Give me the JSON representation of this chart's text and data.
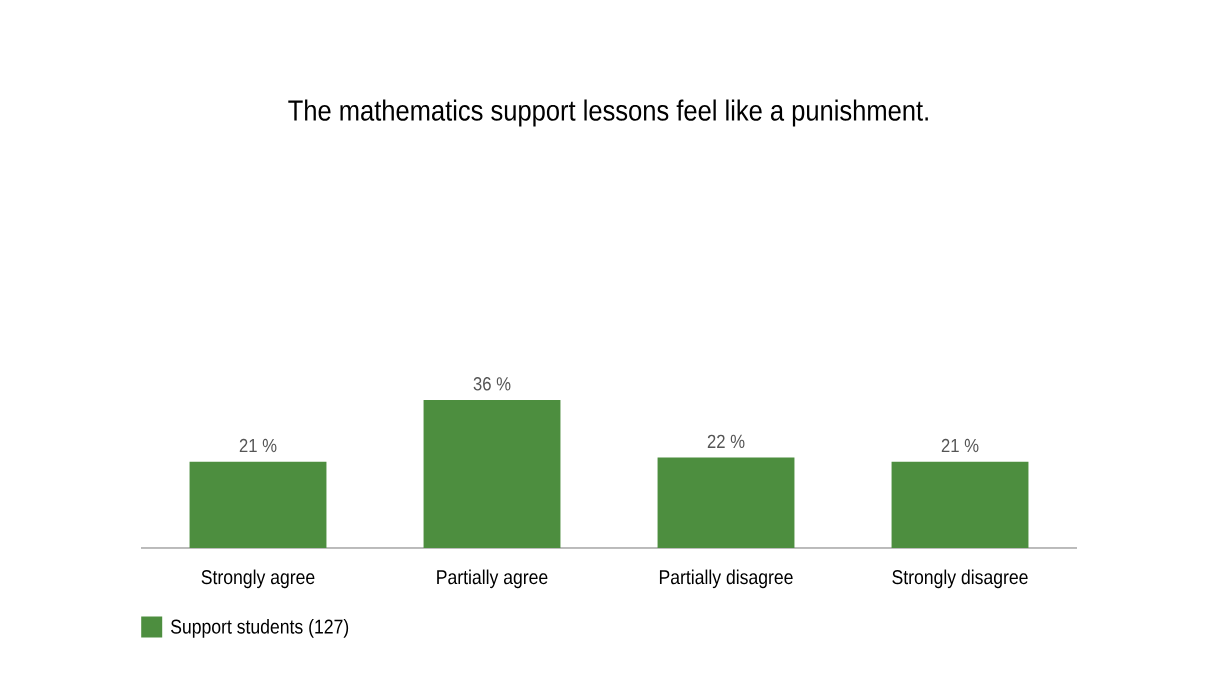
{
  "chart_data": {
    "type": "bar",
    "title": "The mathematics support lessons feel like a punishment.",
    "categories": [
      "Strongly agree",
      "Partially agree",
      "Partially disagree",
      "Strongly disagree"
    ],
    "series": [
      {
        "name": "Support students (127)",
        "color": "#4d8e3f",
        "values": [
          21,
          36,
          22,
          21
        ],
        "value_labels": [
          "21 %",
          "36 %",
          "22 %",
          "21 %"
        ]
      }
    ],
    "legend": "bottom left",
    "tick_labels": "x"
  }
}
